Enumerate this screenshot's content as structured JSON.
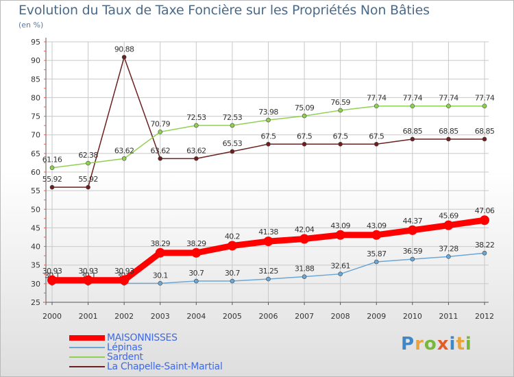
{
  "title": "Evolution du Taux de Taxe Foncière sur les Propriétés Non Bâties",
  "subtitle": "(en %)",
  "logo": {
    "text": "Proxiti",
    "letters": [
      "P",
      "r",
      "o",
      "x",
      "i",
      "t",
      "i"
    ]
  },
  "colors": {
    "grid": "#c8c8c8",
    "axis": "#555555",
    "axis_tick_mark": "#e06060"
  },
  "chart_data": {
    "type": "line",
    "title": "Evolution du Taux de Taxe Foncière sur les Propriétés Non Bâties",
    "ylabel": "(en %)",
    "xlabel": "",
    "x": [
      "2000",
      "2001",
      "2002",
      "2003",
      "2004",
      "2005",
      "2006",
      "2007",
      "2008",
      "2009",
      "2010",
      "2011",
      "2012"
    ],
    "ylim": [
      25,
      95
    ],
    "yticks": [
      25,
      30,
      35,
      40,
      45,
      50,
      55,
      60,
      65,
      70,
      75,
      80,
      85,
      90,
      95
    ],
    "grid": true,
    "legend_position": "bottom-left",
    "series": [
      {
        "name": "La Chapelle-Saint-Martial",
        "color": "#6b1f1f",
        "style": "thin",
        "values": [
          55.92,
          55.92,
          90.88,
          63.62,
          63.62,
          65.53,
          67.5,
          67.5,
          67.5,
          67.5,
          68.85,
          68.85,
          68.85
        ],
        "labels": [
          "55.92",
          "55.92",
          "90.88",
          "63.62",
          "63.62",
          "65.53",
          "67.5",
          "67.5",
          "67.5",
          "67.5",
          "68.85",
          "68.85",
          "68.85"
        ]
      },
      {
        "name": "Sardent",
        "color": "#90d050",
        "style": "thin",
        "values": [
          61.16,
          62.38,
          63.62,
          70.79,
          72.53,
          72.53,
          73.98,
          75.09,
          76.59,
          77.74,
          77.74,
          77.74,
          77.74
        ],
        "labels": [
          "61.16",
          "62.38",
          "63.62",
          "70.79",
          "72.53",
          "72.53",
          "73.98",
          "75.09",
          "76.59",
          "77.74",
          "77.74",
          "77.74",
          "77.74"
        ]
      },
      {
        "name": "Lépinas",
        "color": "#6aa6d6",
        "style": "thin",
        "values": [
          30.1,
          30.1,
          30.1,
          30.1,
          30.7,
          30.7,
          31.25,
          31.88,
          32.61,
          35.87,
          36.59,
          37.28,
          38.22
        ],
        "labels": [
          "30.1",
          "30.1",
          "30.1",
          "30.1",
          "30.7",
          "30.7",
          "31.25",
          "31.88",
          "32.61",
          "35.87",
          "36.59",
          "37.28",
          "38.22"
        ]
      },
      {
        "name": "MAISONNISSES",
        "color": "#ff0000",
        "style": "thick",
        "values": [
          30.93,
          30.93,
          30.93,
          38.29,
          38.29,
          40.2,
          41.38,
          42.04,
          43.09,
          43.09,
          44.37,
          45.69,
          47.06
        ],
        "labels": [
          "30.93",
          "30.93",
          "30.93",
          "38.29",
          "38.29",
          "40.2",
          "41.38",
          "42.04",
          "43.09",
          "43.09",
          "44.37",
          "45.69",
          "47.06"
        ]
      }
    ],
    "legend_order": [
      "MAISONNISSES",
      "Lépinas",
      "Sardent",
      "La Chapelle-Saint-Martial"
    ]
  }
}
